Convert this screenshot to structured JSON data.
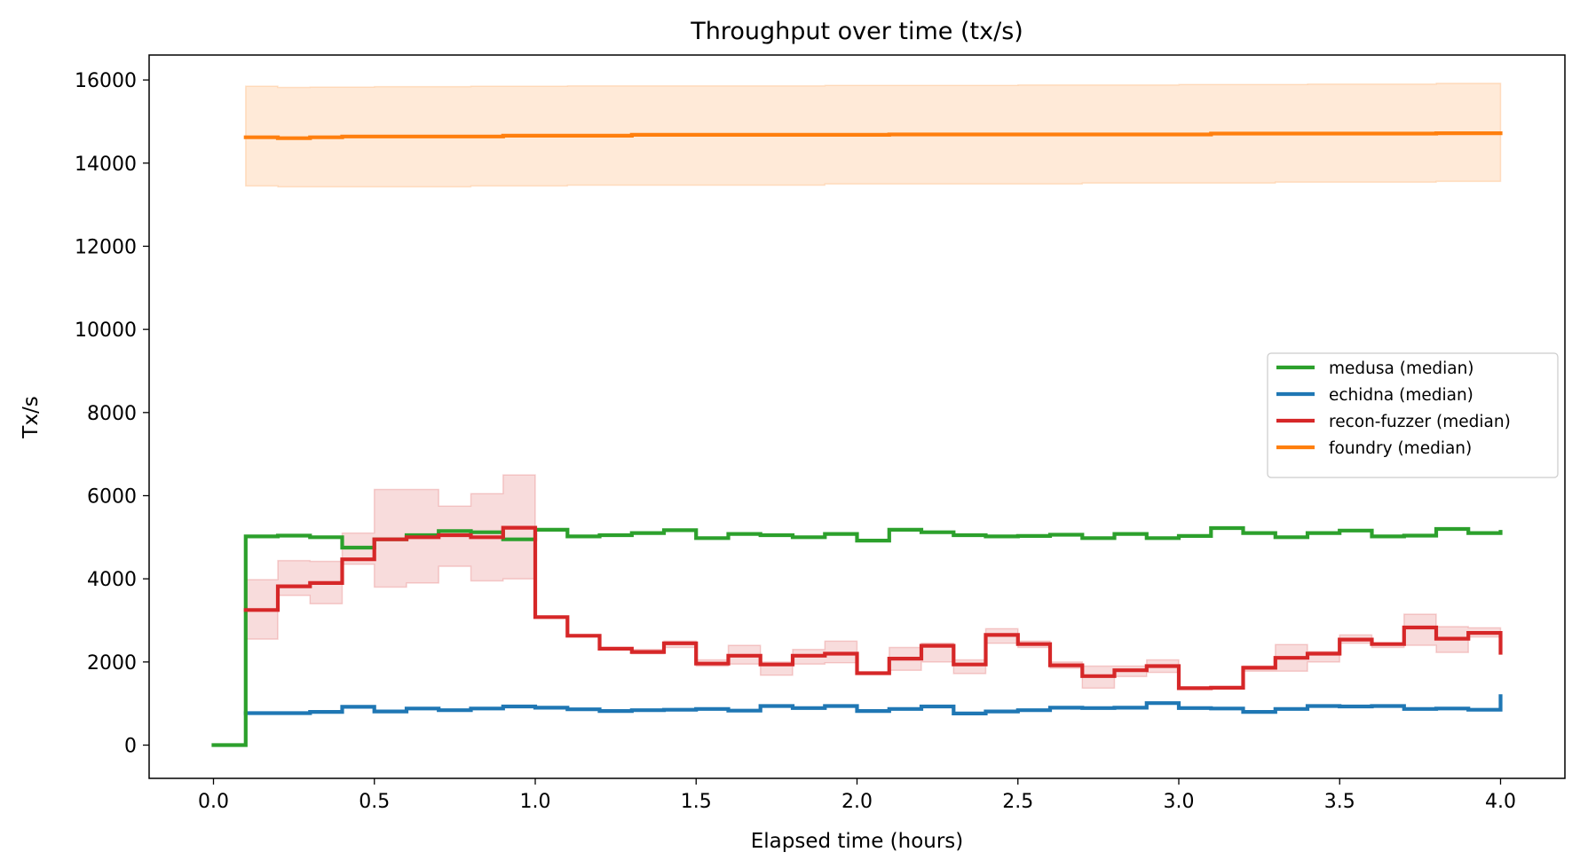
{
  "chart_data": {
    "type": "line",
    "step": true,
    "title": "Throughput over time (tx/s)",
    "xlabel": "Elapsed time (hours)",
    "ylabel": "Tx/s",
    "xlim": [
      -0.2,
      4.2
    ],
    "ylim": [
      -800,
      16600
    ],
    "xticks": [
      "0.0",
      "0.5",
      "1.0",
      "1.5",
      "2.0",
      "2.5",
      "3.0",
      "3.5",
      "4.0"
    ],
    "yticks": [
      "0",
      "2000",
      "4000",
      "6000",
      "8000",
      "10000",
      "12000",
      "14000",
      "16000"
    ],
    "legend_position": "center-right",
    "x": [
      0.0,
      0.1,
      0.2,
      0.3,
      0.4,
      0.5,
      0.6,
      0.7,
      0.8,
      0.9,
      1.0,
      1.1,
      1.2,
      1.3,
      1.4,
      1.5,
      1.6,
      1.7,
      1.8,
      1.9,
      2.0,
      2.1,
      2.2,
      2.3,
      2.4,
      2.5,
      2.6,
      2.7,
      2.8,
      2.9,
      3.0,
      3.1,
      3.2,
      3.3,
      3.4,
      3.5,
      3.6,
      3.7,
      3.8,
      3.9,
      4.0
    ],
    "series": [
      {
        "name": "medusa (median)",
        "color": "#2ca02c",
        "values": [
          0,
          5020,
          5040,
          5000,
          4750,
          4950,
          5050,
          5150,
          5120,
          4950,
          5180,
          5020,
          5050,
          5100,
          5170,
          4980,
          5080,
          5050,
          5000,
          5080,
          4920,
          5180,
          5120,
          5050,
          5020,
          5030,
          5060,
          4980,
          5080,
          4980,
          5030,
          5220,
          5100,
          5000,
          5100,
          5160,
          5020,
          5040,
          5200,
          5100,
          5130
        ]
      },
      {
        "name": "echidna (median)",
        "color": "#1f77b4",
        "values": [
          null,
          770,
          770,
          800,
          920,
          810,
          880,
          840,
          880,
          930,
          900,
          860,
          820,
          840,
          850,
          870,
          830,
          940,
          890,
          940,
          820,
          870,
          930,
          760,
          810,
          840,
          900,
          890,
          900,
          1010,
          890,
          880,
          800,
          870,
          940,
          930,
          940,
          870,
          880,
          850,
          1180
        ]
      },
      {
        "name": "recon-fuzzer (median)",
        "color": "#d62728",
        "values": [
          null,
          3250,
          3820,
          3900,
          4470,
          4950,
          5000,
          5050,
          5000,
          5230,
          3080,
          2630,
          2320,
          2240,
          2450,
          1960,
          2150,
          1940,
          2150,
          2200,
          1730,
          2080,
          2390,
          1940,
          2650,
          2430,
          1920,
          1660,
          1800,
          1900,
          1370,
          1380,
          1860,
          2100,
          2200,
          2540,
          2430,
          2830,
          2560,
          2700,
          2220
        ],
        "band_low": [
          null,
          2550,
          3600,
          3400,
          4350,
          3800,
          3900,
          4300,
          3950,
          4000,
          3080,
          2630,
          2320,
          2200,
          2350,
          1900,
          1950,
          1680,
          1950,
          1980,
          1730,
          1800,
          2000,
          1720,
          2450,
          2350,
          1850,
          1370,
          1650,
          1750,
          1370,
          1380,
          1780,
          1780,
          2000,
          2450,
          2350,
          2400,
          2230,
          2600,
          2220
        ],
        "band_high": [
          null,
          3980,
          4440,
          4420,
          5100,
          6150,
          6150,
          5750,
          6050,
          6500,
          3080,
          2630,
          2320,
          2300,
          2500,
          2050,
          2400,
          2000,
          2300,
          2500,
          1730,
          2350,
          2450,
          2050,
          2800,
          2500,
          2000,
          1900,
          1900,
          2050,
          1370,
          1380,
          1900,
          2420,
          2250,
          2650,
          2450,
          3150,
          2850,
          2820,
          2220
        ]
      },
      {
        "name": "foundry (median)",
        "color": "#ff7f0e",
        "values": [
          null,
          14620,
          14600,
          14620,
          14640,
          14640,
          14640,
          14640,
          14640,
          14660,
          14660,
          14660,
          14660,
          14680,
          14680,
          14680,
          14680,
          14680,
          14680,
          14680,
          14680,
          14690,
          14690,
          14690,
          14690,
          14690,
          14690,
          14690,
          14690,
          14690,
          14690,
          14710,
          14710,
          14710,
          14710,
          14710,
          14710,
          14710,
          14720,
          14720,
          14720
        ],
        "band_low": [
          null,
          13450,
          13430,
          13430,
          13430,
          13430,
          13430,
          13430,
          13450,
          13450,
          13450,
          13470,
          13470,
          13470,
          13470,
          13470,
          13470,
          13470,
          13470,
          13500,
          13500,
          13500,
          13500,
          13500,
          13500,
          13500,
          13500,
          13520,
          13520,
          13520,
          13520,
          13520,
          13520,
          13540,
          13540,
          13540,
          13540,
          13540,
          13560,
          13560,
          13560
        ],
        "band_high": [
          null,
          15850,
          15820,
          15830,
          15830,
          15840,
          15840,
          15840,
          15850,
          15850,
          15850,
          15860,
          15860,
          15860,
          15860,
          15860,
          15860,
          15860,
          15860,
          15870,
          15870,
          15870,
          15870,
          15870,
          15870,
          15880,
          15880,
          15880,
          15880,
          15880,
          15890,
          15890,
          15890,
          15890,
          15900,
          15900,
          15900,
          15900,
          15920,
          15920,
          15920
        ]
      }
    ]
  }
}
